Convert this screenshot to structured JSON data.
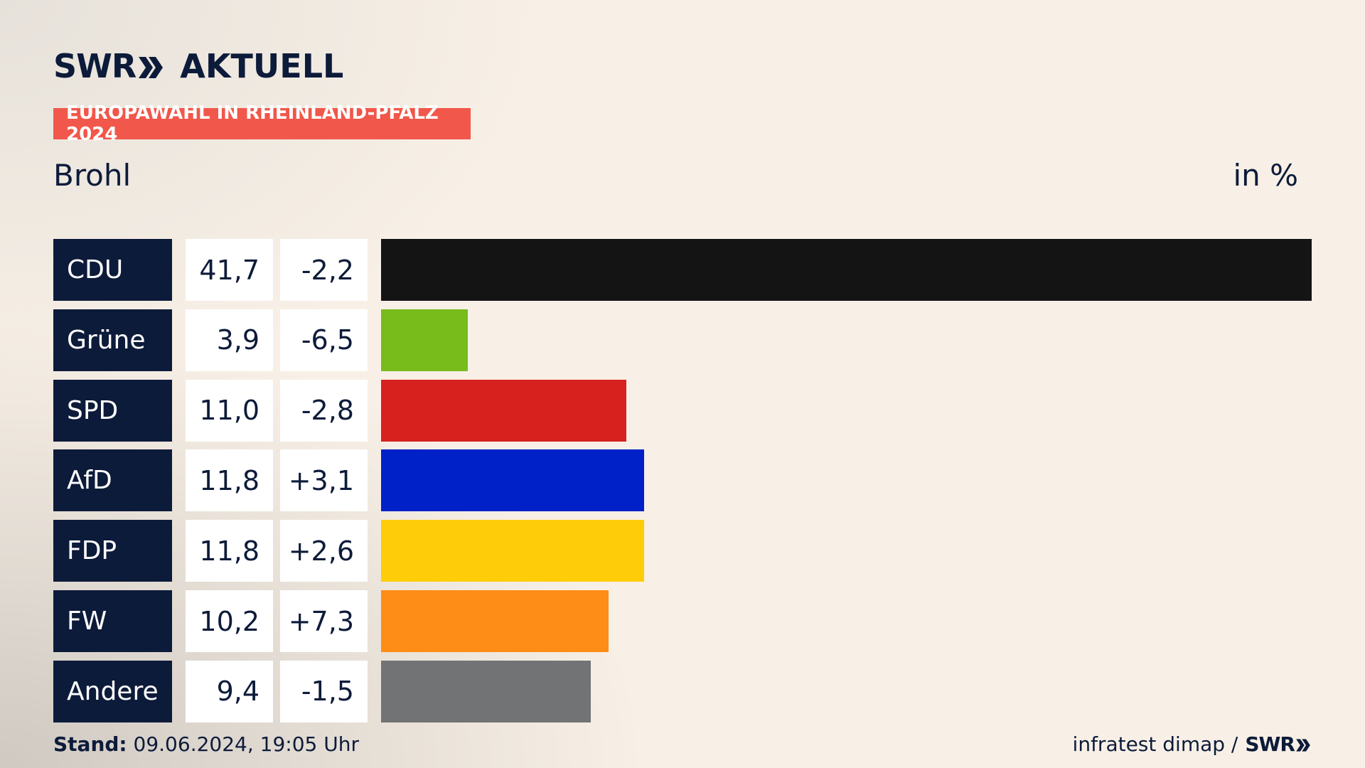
{
  "header": {
    "logo_text": "SWR",
    "brand_title": "AKTUELL",
    "badge": "EUROPAWAHL IN RHEINLAND-PFALZ 2024",
    "region": "Brohl",
    "unit": "in %"
  },
  "chart_data": {
    "type": "bar",
    "orientation": "horizontal",
    "categories": [
      "CDU",
      "Grüne",
      "SPD",
      "AfD",
      "FDP",
      "FW",
      "Andere"
    ],
    "values": [
      41.7,
      3.9,
      11.0,
      11.8,
      11.8,
      10.2,
      9.4
    ],
    "value_labels": [
      "41,7",
      "3,9",
      "11,0",
      "11,8",
      "11,8",
      "10,2",
      "9,4"
    ],
    "changes": [
      -2.2,
      -6.5,
      -2.8,
      3.1,
      2.6,
      7.3,
      -1.5
    ],
    "change_labels": [
      "-2,2",
      "-6,5",
      "-2,8",
      "+3,1",
      "+2,6",
      "+7,3",
      "-1,5"
    ],
    "colors": [
      "#141414",
      "#78bc1b",
      "#d7211e",
      "#0021c8",
      "#ffcc0a",
      "#fd8d16",
      "#727374"
    ],
    "xlim": [
      0,
      41.7
    ],
    "title": "Brohl",
    "unit": "in %",
    "grid": false,
    "legend": "none"
  },
  "footer": {
    "stand_label": "Stand:",
    "stand_value": "09.06.2024, 19:05 Uhr",
    "source": "infratest dimap /",
    "source_logo": "SWR"
  }
}
